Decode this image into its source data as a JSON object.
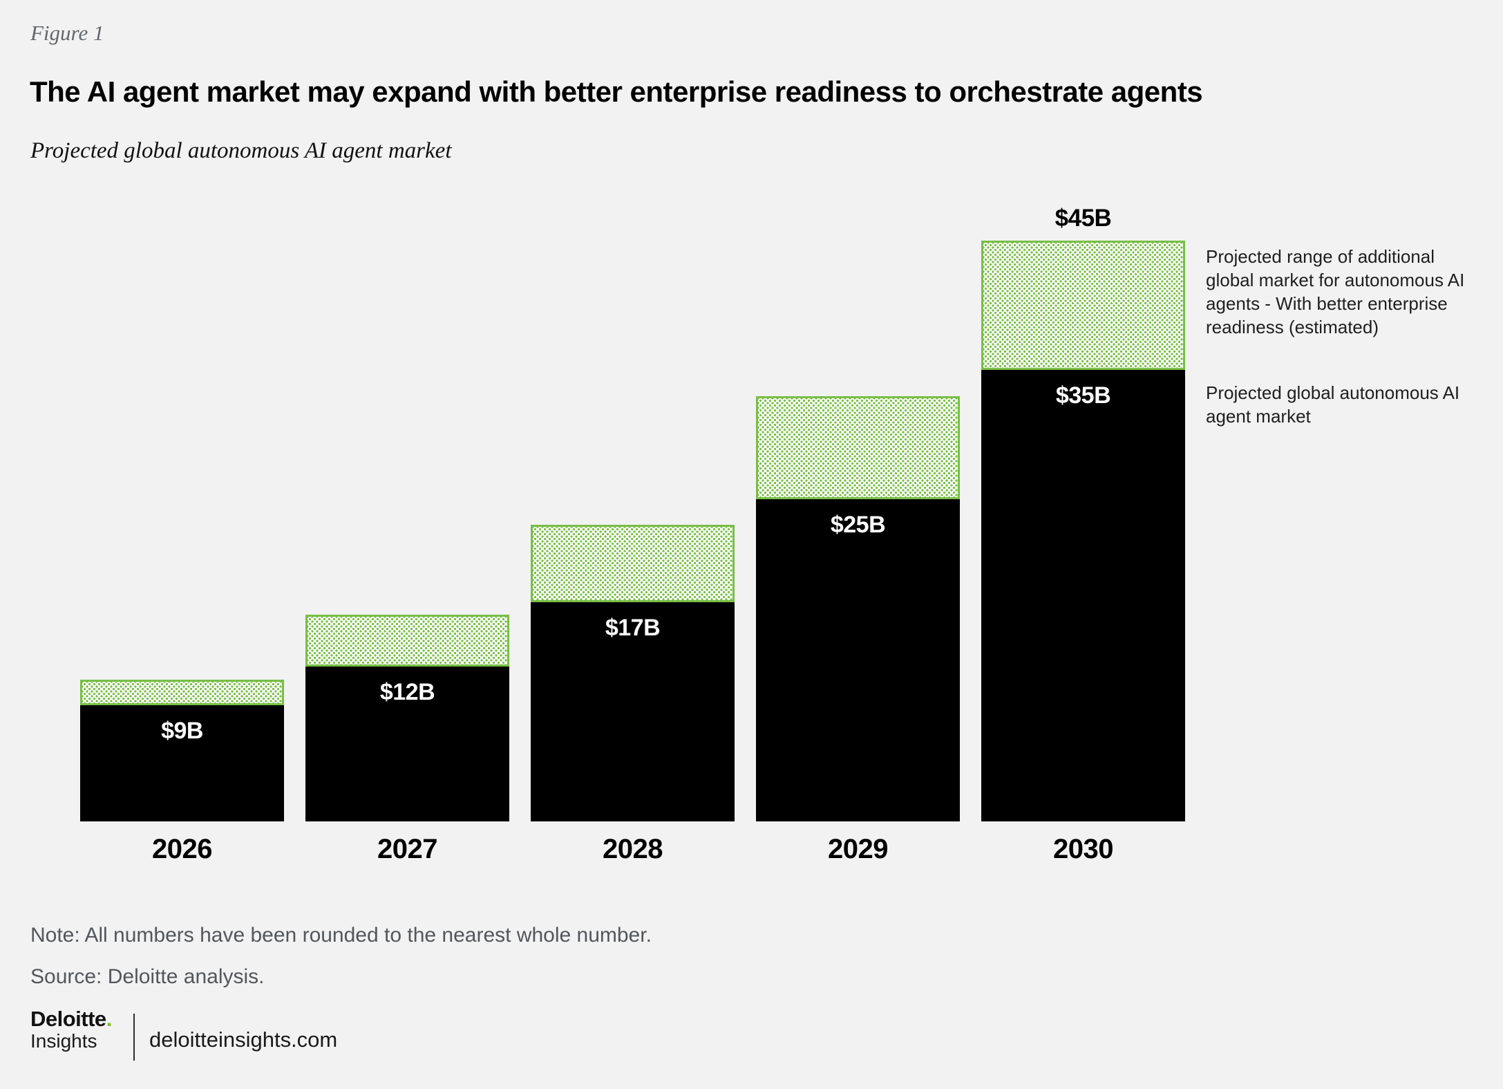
{
  "figure_label": "Figure 1",
  "title": "The AI agent market may expand with better enterprise readiness to orchestrate agents",
  "subtitle": "Projected global autonomous AI agent market",
  "chart_data": {
    "type": "bar",
    "stacked": true,
    "categories": [
      "2026",
      "2027",
      "2028",
      "2029",
      "2030"
    ],
    "series": [
      {
        "name": "Projected global autonomous AI agent market",
        "values": [
          9,
          12,
          17,
          25,
          35
        ],
        "value_labels": [
          "$9B",
          "$12B",
          "$17B",
          "$25B",
          "$35B"
        ],
        "color": "#000000"
      },
      {
        "name": "Projected range of additional global market for autonomous AI agents - With better enterprise readiness (estimated)",
        "values": [
          2,
          4,
          6,
          8,
          10
        ],
        "estimated": true,
        "style": "green-dotted"
      }
    ],
    "totals_with_better_readiness_estimated": [
      11,
      16,
      23,
      33,
      45
    ],
    "total_labels": [
      "",
      "",
      "",
      "",
      "$45B"
    ],
    "xlabel": "",
    "ylabel": "",
    "units": "USD billions",
    "legend_position": "right",
    "grid": false
  },
  "legend": {
    "items": [
      {
        "label": "Projected range of additional global market for autonomous AI agents - With better enterprise readiness (estimated)",
        "swatch": "green-dotted"
      },
      {
        "label": "Projected global autonomous AI agent market",
        "swatch": "black"
      }
    ]
  },
  "note": "Note: All numbers have been rounded to the nearest whole number.",
  "source": "Source: Deloitte analysis.",
  "footer": {
    "brand": "Deloitte",
    "brand_dot": ".",
    "brand_sub": "Insights",
    "site": "deloitteinsights.com"
  },
  "colors": {
    "accent_green": "#78BE46",
    "logo_green": "#86BC25",
    "bar_black": "#000000",
    "background": "#F2F2F2",
    "muted_text": "#53565A"
  }
}
